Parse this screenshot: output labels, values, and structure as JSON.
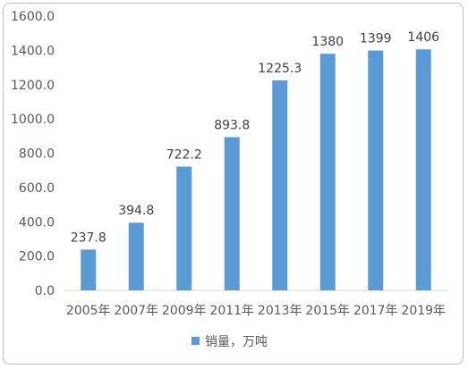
{
  "chart_data": {
    "type": "bar",
    "categories": [
      "2005年",
      "2007年",
      "2009年",
      "2011年",
      "2013年",
      "2015年",
      "2017年",
      "2019年"
    ],
    "series": [
      {
        "name": "销量，万吨",
        "values": [
          237.8,
          394.8,
          722.2,
          893.8,
          1225.3,
          1380,
          1399,
          1406
        ],
        "labels": [
          "237.8",
          "394.8",
          "722.2",
          "893.8",
          "1225.3",
          "1380",
          "1399",
          "1406"
        ],
        "color": "#5b9bd5"
      }
    ],
    "ylim": [
      0,
      1600
    ],
    "yticks": [
      0,
      200,
      400,
      600,
      800,
      1000,
      1200,
      1400,
      1600
    ],
    "ytick_labels": [
      "0.0",
      "200.0",
      "400.0",
      "600.0",
      "800.0",
      "1000.0",
      "1200.0",
      "1400.0",
      "1600.0"
    ],
    "grid": false,
    "legend_position": "bottom-left"
  }
}
